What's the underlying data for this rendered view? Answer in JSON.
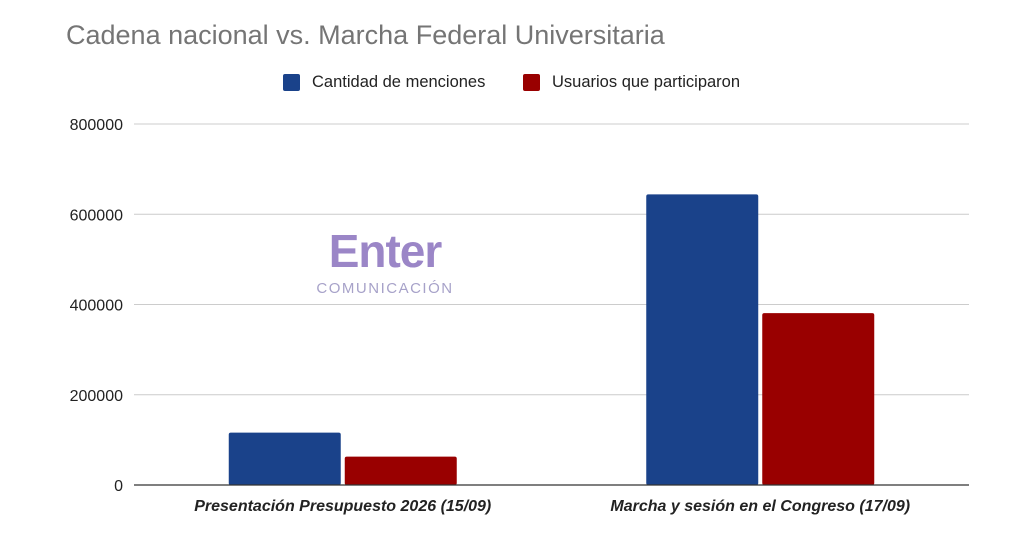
{
  "chart_data": {
    "type": "bar",
    "title": "Cadena nacional vs. Marcha Federal Universitaria",
    "categories": [
      "Presentación Presupuesto 2026 (15/09)",
      "Marcha y sesión en el Congreso (17/09)"
    ],
    "series": [
      {
        "name": "Cantidad de menciones",
        "color": "#1a428a",
        "values": [
          116000,
          644000
        ]
      },
      {
        "name": "Usuarios que participaron",
        "color": "#990000",
        "values": [
          63000,
          381000
        ]
      }
    ],
    "ylim": [
      0,
      800000
    ],
    "yticks": [
      "0",
      "200000",
      "400000",
      "600000",
      "800000"
    ],
    "grid": true,
    "legend": "top"
  },
  "watermark": {
    "brand": "Enter",
    "subtitle": "COMUNICACIÓN"
  },
  "colors": {
    "gridline": "#cccccc",
    "axis": "#333333",
    "title": "#757575"
  }
}
